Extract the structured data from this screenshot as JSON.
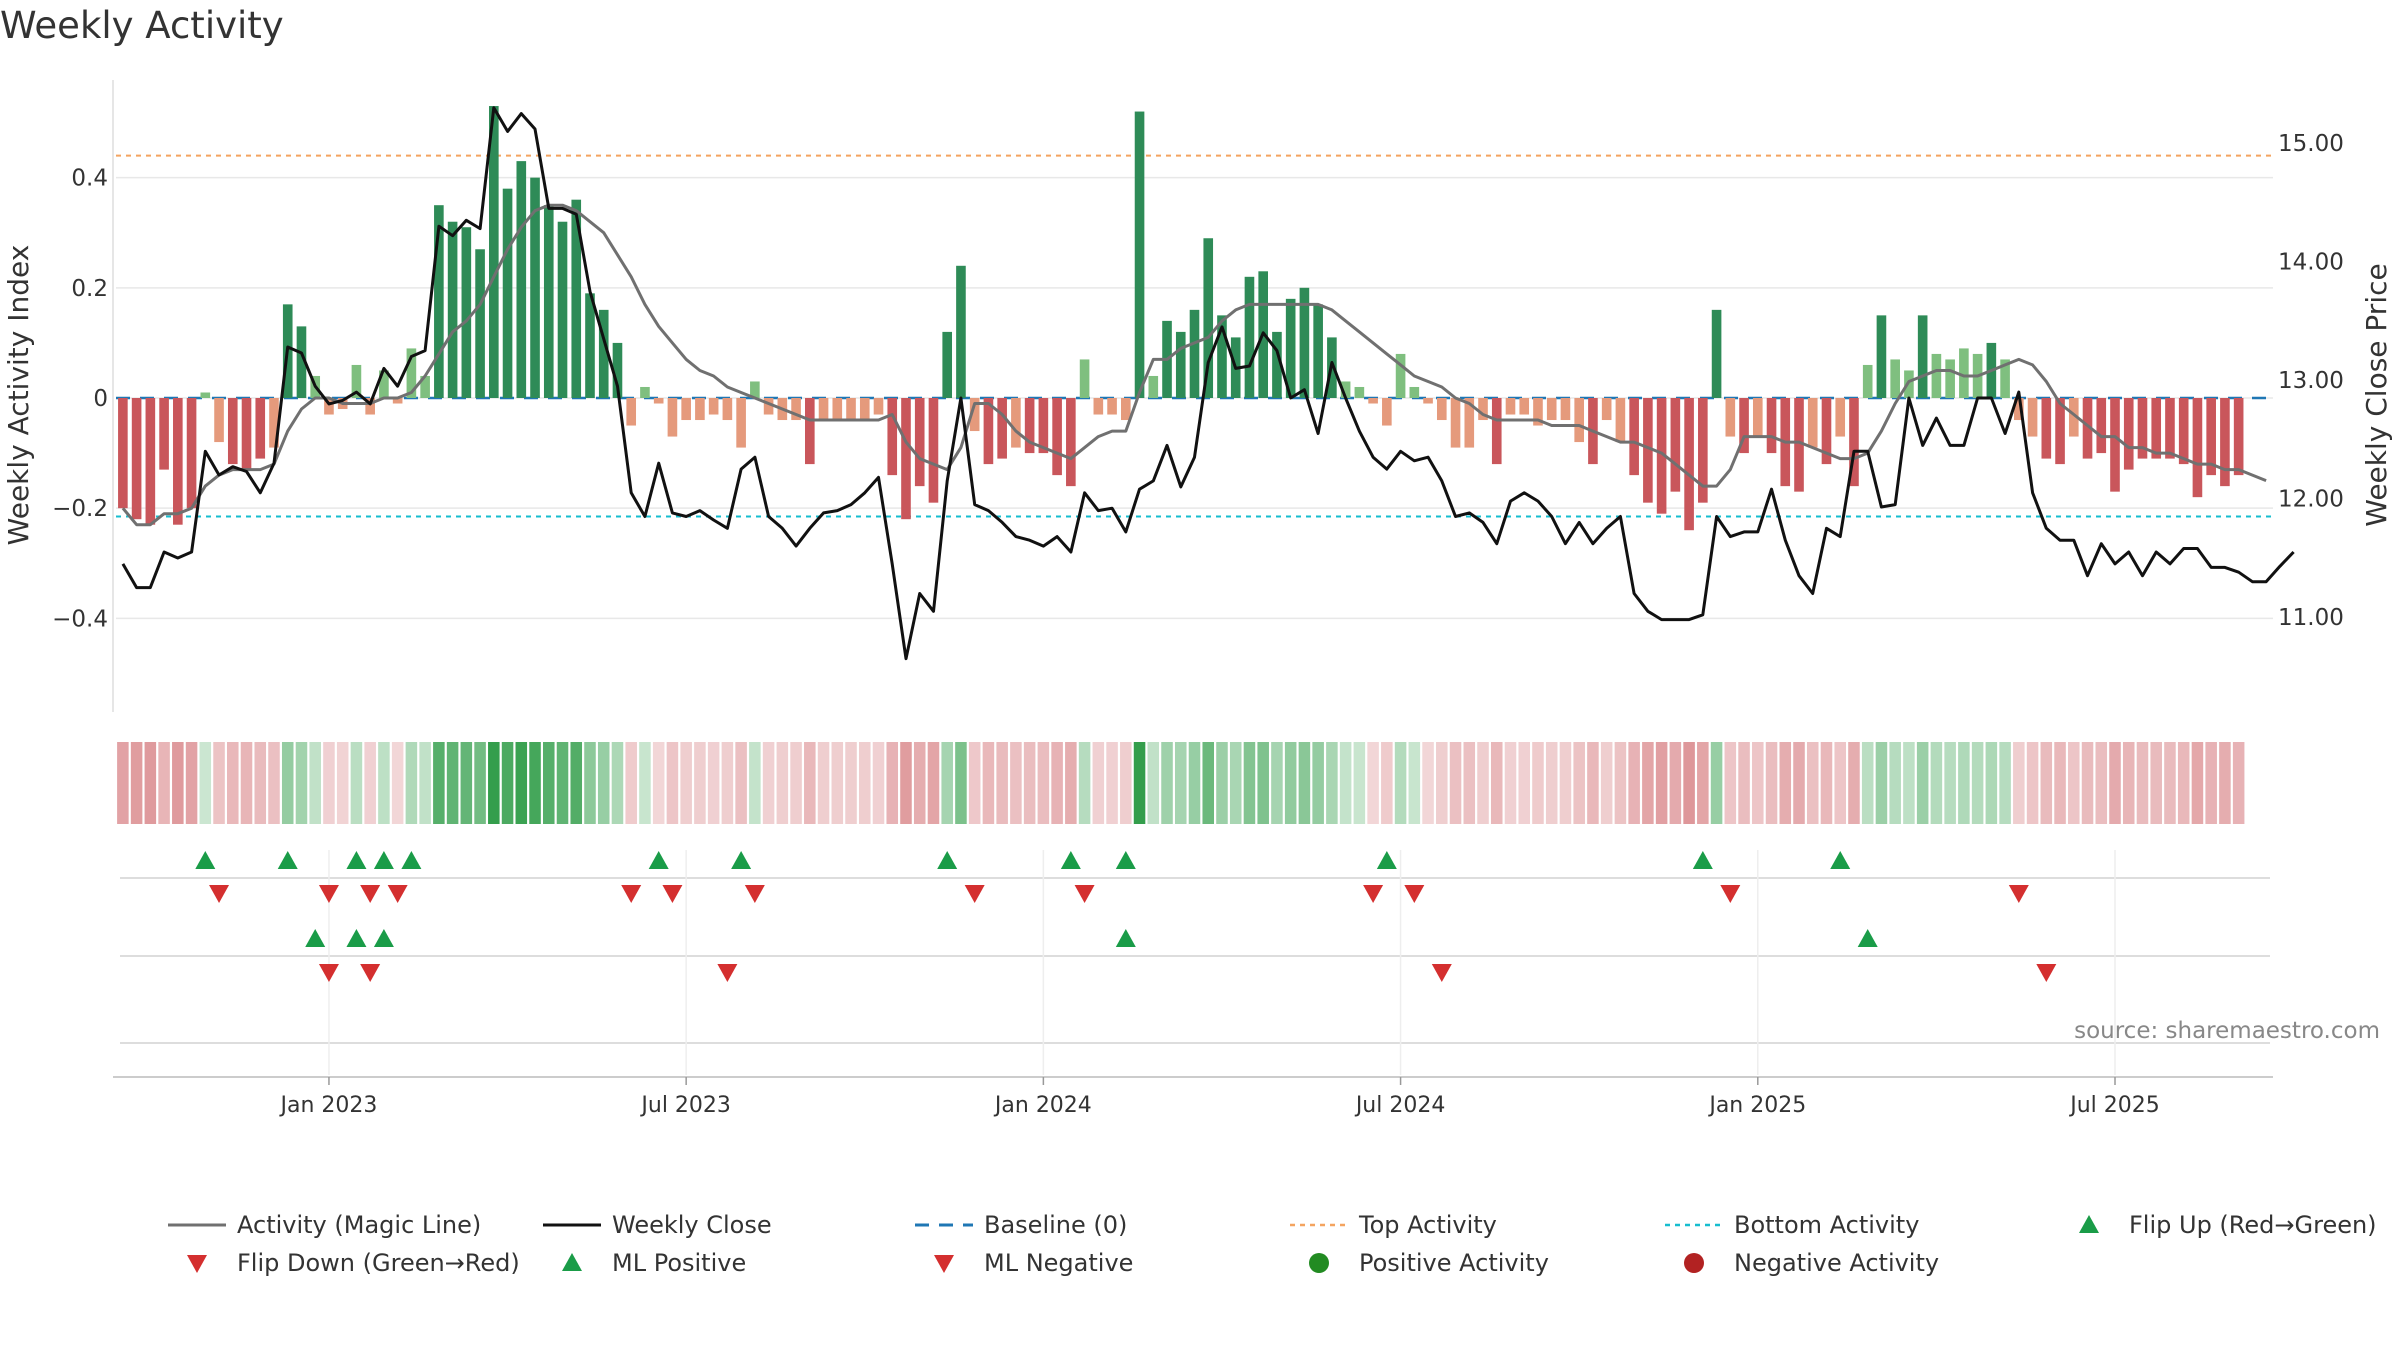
{
  "page": {
    "title": "Weekly Activity"
  },
  "chart_data": {
    "type": "bar",
    "title": "Weekly Activity",
    "ylabel_left": "Weekly Activity Index",
    "ylabel_right": "Weekly Close Price",
    "ylim_left": [
      -0.57,
      0.57
    ],
    "ylim_right": [
      10.2,
      15.5
    ],
    "yticks_left": [
      {
        "value": 0.4,
        "label": "0.4"
      },
      {
        "value": 0.2,
        "label": "0.2"
      },
      {
        "value": 0,
        "label": "0"
      },
      {
        "value": -0.2,
        "label": "−0.2"
      },
      {
        "value": -0.4,
        "label": "−0.4"
      }
    ],
    "yticks_right": [
      {
        "value": 15,
        "label": "15.00"
      },
      {
        "value": 14,
        "label": "14.00"
      },
      {
        "value": 13,
        "label": "13.00"
      },
      {
        "value": 12,
        "label": "12.00"
      },
      {
        "value": 11,
        "label": "11.00"
      }
    ],
    "xticks": [
      {
        "week": 15,
        "label": "Jan 2023"
      },
      {
        "week": 41,
        "label": "Jul 2023"
      },
      {
        "week": 67,
        "label": "Jan 2024"
      },
      {
        "week": 93,
        "label": "Jul 2024"
      },
      {
        "week": 119,
        "label": "Jan 2025"
      },
      {
        "week": 145,
        "label": "Jul 2025"
      }
    ],
    "week_count": 157,
    "activity": [
      -0.2,
      -0.22,
      -0.23,
      -0.13,
      -0.23,
      -0.2,
      0.01,
      -0.08,
      -0.12,
      -0.13,
      -0.11,
      -0.09,
      0.17,
      0.13,
      0.04,
      -0.03,
      -0.02,
      0.06,
      -0.03,
      0.05,
      -0.01,
      0.09,
      0.04,
      0.35,
      0.32,
      0.31,
      0.27,
      0.53,
      0.38,
      0.43,
      0.4,
      0.35,
      0.32,
      0.36,
      0.19,
      0.16,
      0.1,
      -0.05,
      0.02,
      -0.01,
      -0.07,
      -0.04,
      -0.04,
      -0.03,
      -0.04,
      -0.09,
      0.03,
      -0.03,
      -0.04,
      -0.04,
      -0.12,
      -0.04,
      -0.04,
      -0.04,
      -0.04,
      -0.03,
      -0.14,
      -0.22,
      -0.16,
      -0.19,
      0.12,
      0.24,
      -0.06,
      -0.12,
      -0.11,
      -0.09,
      -0.1,
      -0.1,
      -0.14,
      -0.16,
      0.07,
      -0.03,
      -0.03,
      -0.04,
      0.52,
      0.04,
      0.14,
      0.12,
      0.16,
      0.29,
      0.15,
      0.11,
      0.22,
      0.23,
      0.12,
      0.18,
      0.2,
      0.17,
      0.11,
      0.03,
      0.02,
      -0.01,
      -0.05,
      0.08,
      0.02,
      -0.01,
      -0.04,
      -0.09,
      -0.09,
      -0.04,
      -0.12,
      -0.03,
      -0.03,
      -0.05,
      -0.04,
      -0.04,
      -0.08,
      -0.12,
      -0.04,
      -0.08,
      -0.14,
      -0.19,
      -0.21,
      -0.17,
      -0.24,
      -0.19,
      0.16,
      -0.07,
      -0.1,
      -0.07,
      -0.1,
      -0.16,
      -0.17,
      -0.09,
      -0.12,
      -0.07,
      -0.16,
      0.06,
      0.15,
      0.07,
      0.05,
      0.15,
      0.08,
      0.07,
      0.09,
      0.08,
      0.1,
      0.07,
      -0.04,
      -0.07,
      -0.11,
      -0.12,
      -0.07,
      -0.11,
      -0.1,
      -0.17,
      -0.13,
      -0.11,
      -0.11,
      -0.11,
      -0.12,
      -0.18,
      -0.14,
      -0.16,
      -0.14
    ],
    "magic_line": [
      -0.2,
      -0.23,
      -0.23,
      -0.21,
      -0.21,
      -0.2,
      -0.16,
      -0.14,
      -0.13,
      -0.13,
      -0.13,
      -0.12,
      -0.06,
      -0.02,
      0,
      0,
      -0.01,
      -0.01,
      -0.01,
      0,
      0,
      0.01,
      0.04,
      0.08,
      0.12,
      0.14,
      0.17,
      0.22,
      0.27,
      0.31,
      0.34,
      0.35,
      0.35,
      0.34,
      0.32,
      0.3,
      0.26,
      0.22,
      0.17,
      0.13,
      0.1,
      0.07,
      0.05,
      0.04,
      0.02,
      0.01,
      0,
      -0.01,
      -0.02,
      -0.03,
      -0.04,
      -0.04,
      -0.04,
      -0.04,
      -0.04,
      -0.04,
      -0.03,
      -0.08,
      -0.11,
      -0.12,
      -0.13,
      -0.09,
      -0.01,
      -0.01,
      -0.03,
      -0.06,
      -0.08,
      -0.09,
      -0.1,
      -0.11,
      -0.09,
      -0.07,
      -0.06,
      -0.06,
      0.01,
      0.07,
      0.07,
      0.09,
      0.1,
      0.11,
      0.14,
      0.16,
      0.17,
      0.17,
      0.17,
      0.17,
      0.17,
      0.17,
      0.16,
      0.14,
      0.12,
      0.1,
      0.08,
      0.06,
      0.04,
      0.03,
      0.02,
      0,
      -0.01,
      -0.03,
      -0.04,
      -0.04,
      -0.04,
      -0.04,
      -0.05,
      -0.05,
      -0.05,
      -0.06,
      -0.07,
      -0.08,
      -0.08,
      -0.09,
      -0.1,
      -0.12,
      -0.14,
      -0.16,
      -0.16,
      -0.13,
      -0.07,
      -0.07,
      -0.07,
      -0.08,
      -0.08,
      -0.09,
      -0.1,
      -0.11,
      -0.11,
      -0.1,
      -0.06,
      -0.01,
      0.03,
      0.04,
      0.05,
      0.05,
      0.04,
      0.04,
      0.05,
      0.06,
      0.07,
      0.06,
      0.03,
      -0.01,
      -0.03,
      -0.05,
      -0.07,
      -0.07,
      -0.09,
      -0.09,
      -0.1,
      -0.1,
      -0.11,
      -0.12,
      -0.12,
      -0.13,
      -0.13,
      -0.14,
      -0.15
    ],
    "weekly_close": [
      11.45,
      11.25,
      11.25,
      11.55,
      11.5,
      11.55,
      12.4,
      12.2,
      12.27,
      12.23,
      12.05,
      12.3,
      13.28,
      13.23,
      12.95,
      12.8,
      12.83,
      12.9,
      12.8,
      13.1,
      12.95,
      13.2,
      13.25,
      14.3,
      14.22,
      14.35,
      14.28,
      15.3,
      15.1,
      15.25,
      15.12,
      14.45,
      14.45,
      14.4,
      13.75,
      13.35,
      12.95,
      12.05,
      11.85,
      12.3,
      11.88,
      11.85,
      11.9,
      11.82,
      11.75,
      12.25,
      12.35,
      11.85,
      11.75,
      11.6,
      11.75,
      11.88,
      11.9,
      11.95,
      12.05,
      12.18,
      11.45,
      10.65,
      11.2,
      11.05,
      12.15,
      12.85,
      11.95,
      11.9,
      11.8,
      11.68,
      11.65,
      11.6,
      11.68,
      11.55,
      12.05,
      11.9,
      11.92,
      11.72,
      12.08,
      12.15,
      12.45,
      12.1,
      12.35,
      13.15,
      13.45,
      13.1,
      13.12,
      13.4,
      13.25,
      12.85,
      12.92,
      12.55,
      13.15,
      12.85,
      12.57,
      12.35,
      12.25,
      12.4,
      12.32,
      12.35,
      12.15,
      11.85,
      11.88,
      11.8,
      11.62,
      11.98,
      12.05,
      11.98,
      11.85,
      11.62,
      11.8,
      11.62,
      11.75,
      11.85,
      11.2,
      11.05,
      10.98,
      10.98,
      10.98,
      11.02,
      11.85,
      11.68,
      11.72,
      11.72,
      12.08,
      11.65,
      11.35,
      11.2,
      11.75,
      11.68,
      12.4,
      12.4,
      11.93,
      11.95,
      12.85,
      12.45,
      12.68,
      12.45,
      12.45,
      12.85,
      12.85,
      12.55,
      12.9,
      12.05,
      11.75,
      11.65,
      11.65,
      11.35,
      11.62,
      11.45,
      11.55,
      11.35,
      11.55,
      11.45,
      11.58,
      11.58,
      11.42,
      11.42,
      11.38,
      11.3,
      11.3,
      11.43,
      11.55
    ],
    "reference_lines": {
      "baseline": {
        "value": 0,
        "label": "Baseline (0)",
        "color": "#1f77b4"
      },
      "top_activity": {
        "value": 0.44,
        "label": "Top Activity",
        "color": "#f4a460"
      },
      "bottom_activity": {
        "value": -0.215,
        "label": "Bottom Activity",
        "color": "#17becf"
      }
    },
    "flip_up_weeks": [
      6,
      12,
      17,
      19,
      21,
      39,
      45,
      60,
      69,
      73,
      92,
      115,
      125
    ],
    "flip_down_weeks": [
      7,
      15,
      18,
      20,
      37,
      40,
      46,
      62,
      70,
      91,
      94,
      117,
      138
    ],
    "ml_positive_weeks": [
      14,
      17,
      19,
      73,
      127
    ],
    "ml_negative_weeks": [
      15,
      18,
      44,
      96,
      140
    ],
    "colors": {
      "strong_green": "#2e8b57",
      "light_green": "#7fbf7f",
      "strong_red": "#c9565b",
      "light_red": "#e59a7c",
      "magic_line": "#707070",
      "weekly_close": "#111111",
      "flip_up": "#1a9c48",
      "flip_down": "#d42f2f",
      "positive_activity": "#228b22",
      "negative_activity": "#b22222"
    },
    "legend": [
      {
        "label": "Activity (Magic Line)",
        "kind": "solid",
        "color": "#707070"
      },
      {
        "label": "Weekly Close",
        "kind": "solid",
        "color": "#111111"
      },
      {
        "label": "Baseline (0)",
        "kind": "dashed",
        "color": "#1f77b4"
      },
      {
        "label": "Top Activity",
        "kind": "dotted",
        "color": "#f4a460"
      },
      {
        "label": "Bottom Activity",
        "kind": "dotted",
        "color": "#17becf"
      },
      {
        "label": "Flip Up (Red→Green)",
        "kind": "triangle-up",
        "color": "#1a9c48"
      },
      {
        "label": "Flip Down (Green→Red)",
        "kind": "triangle-down",
        "color": "#d42f2f"
      },
      {
        "label": "ML Positive",
        "kind": "triangle-up",
        "color": "#1a9c48"
      },
      {
        "label": "ML Negative",
        "kind": "triangle-down",
        "color": "#d42f2f"
      },
      {
        "label": "Positive Activity",
        "kind": "circle",
        "color": "#228b22"
      },
      {
        "label": "Negative Activity",
        "kind": "circle",
        "color": "#b22222"
      }
    ],
    "source_note": "source: sharemaestro.com"
  }
}
